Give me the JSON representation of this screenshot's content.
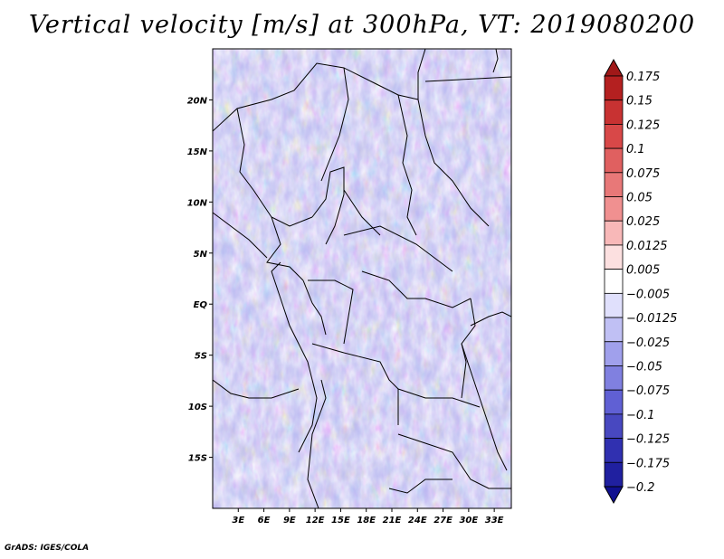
{
  "title": "Vertical velocity [m/s] at 300hPa, VT: 2019080200",
  "footer": "GrADS: IGES/COLA",
  "map": {
    "lon_labels": [
      "3E",
      "6E",
      "9E",
      "12E",
      "15E",
      "18E",
      "21E",
      "24E",
      "27E",
      "30E",
      "33E"
    ],
    "lat_labels": [
      "20N",
      "15N",
      "10N",
      "5N",
      "EQ",
      "5S",
      "10S",
      "15S"
    ],
    "lon_range": [
      0,
      35
    ],
    "lat_range": [
      -20,
      25
    ]
  },
  "colorbar": {
    "labels": [
      "0.175",
      "0.15",
      "0.125",
      "0.1",
      "0.075",
      "0.05",
      "0.025",
      "0.0125",
      "0.005",
      "−0.005",
      "−0.0125",
      "−0.025",
      "−0.05",
      "−0.075",
      "−0.1",
      "−0.125",
      "−0.175",
      "−0.2"
    ],
    "colors": [
      "#a01818",
      "#b42020",
      "#c83232",
      "#d84848",
      "#e06060",
      "#e87878",
      "#f09090",
      "#f8b8b8",
      "#fce0e0",
      "#ffffff",
      "#e0e0fc",
      "#c0c0f4",
      "#a0a0ec",
      "#8080e0",
      "#6060d4",
      "#4848c0",
      "#3030b0",
      "#2020a0",
      "#101090"
    ]
  }
}
